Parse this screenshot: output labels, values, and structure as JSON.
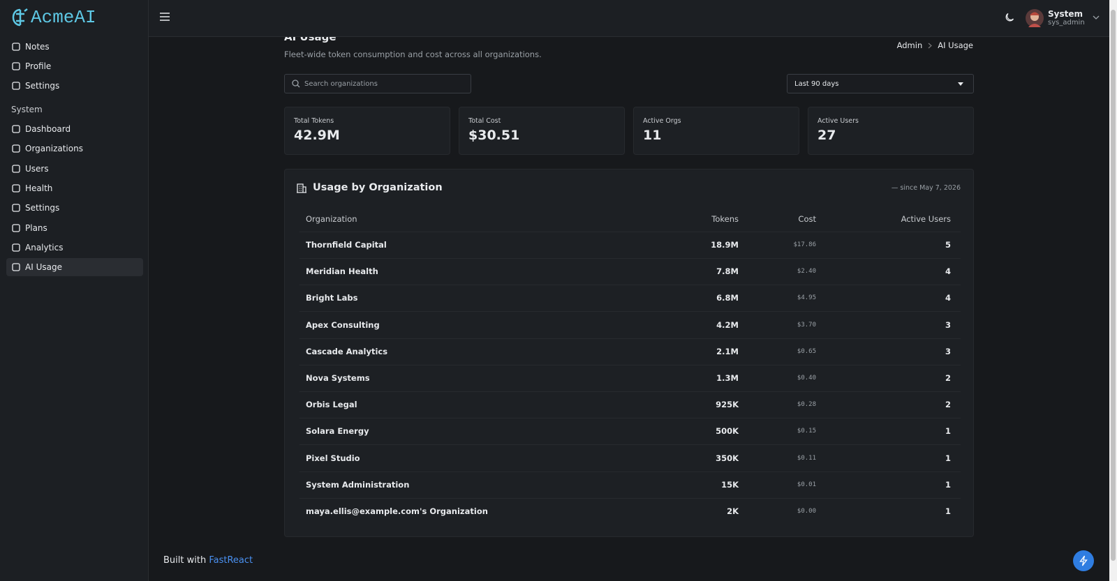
{
  "brand": "AcmeAI",
  "sidebar": {
    "items": [
      "Notes",
      "Profile",
      "Settings"
    ],
    "section_title": "System",
    "system_items": [
      "Dashboard",
      "Organizations",
      "Users",
      "Health",
      "Settings",
      "Plans",
      "Analytics",
      "AI Usage"
    ]
  },
  "header": {
    "user_name": "System",
    "user_handle": "sys_admin"
  },
  "page": {
    "title": "AI Usage",
    "subtitle": "Fleet-wide token consumption and cost across all organizations.",
    "breadcrumb": [
      "Admin",
      "AI Usage"
    ]
  },
  "filters": {
    "search_placeholder": "Search organizations",
    "period": "Last 90 days"
  },
  "stats": [
    {
      "label": "Total Tokens",
      "value": "42.9M"
    },
    {
      "label": "Total Cost",
      "value": "$30.51"
    },
    {
      "label": "Active Orgs",
      "value": "11"
    },
    {
      "label": "Active Users",
      "value": "27"
    }
  ],
  "table": {
    "title": "Usage by Organization",
    "note": "— since May 7, 2026",
    "columns": [
      "Organization",
      "Tokens",
      "Cost",
      "Active Users"
    ],
    "rows": [
      [
        "Thornfield Capital",
        "18.9M",
        "$17.86",
        "5"
      ],
      [
        "Meridian Health",
        "7.8M",
        "$2.40",
        "4"
      ],
      [
        "Bright Labs",
        "6.8M",
        "$4.95",
        "4"
      ],
      [
        "Apex Consulting",
        "4.2M",
        "$3.70",
        "3"
      ],
      [
        "Cascade Analytics",
        "2.1M",
        "$0.65",
        "3"
      ],
      [
        "Nova Systems",
        "1.3M",
        "$0.40",
        "2"
      ],
      [
        "Orbis Legal",
        "925K",
        "$0.28",
        "2"
      ],
      [
        "Solara Energy",
        "500K",
        "$0.15",
        "1"
      ],
      [
        "Pixel Studio",
        "350K",
        "$0.11",
        "1"
      ],
      [
        "System Administration",
        "15K",
        "$0.01",
        "1"
      ],
      [
        "maya.ellis@example.com's Organization",
        "2K",
        "$0.00",
        "1"
      ]
    ]
  },
  "footer": {
    "text": "Built with",
    "link": "FastReact"
  }
}
